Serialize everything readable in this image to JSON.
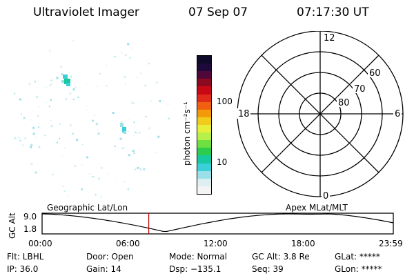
{
  "header": {
    "instrument": "Ultraviolet Imager",
    "date": "07 Sep 07",
    "time": "07:17:30 UT"
  },
  "colorbar": {
    "label": "photon cm⁻²s⁻¹",
    "ticks": [
      "100",
      "10"
    ],
    "colors": [
      "#0d0a2a",
      "#1e0a3a",
      "#50083a",
      "#8c0a20",
      "#c80814",
      "#e02a1a",
      "#f06010",
      "#f39a0a",
      "#f2cc1a",
      "#e6f03a",
      "#b8f04a",
      "#6ee040",
      "#2ccd4c",
      "#18c8a0",
      "#3ad0d8",
      "#9ae0e8",
      "#dfeef0",
      "#f4f4f4"
    ]
  },
  "polar_grid": {
    "mlt_labels": {
      "top": "12",
      "left": "18",
      "right": "6",
      "bottom": "0"
    },
    "mlat_labels": [
      "60",
      "70",
      "80"
    ]
  },
  "timeline": {
    "ylabel": "GC Alt",
    "y_max": "9.0",
    "y_min": "1.8",
    "left_title": "Geographic Lat/Lon",
    "right_title": "Apex MLat/MLT",
    "x_ticks": [
      "00:00",
      "06:00",
      "12:00",
      "18:00",
      "23:59"
    ],
    "current_time_hours": 7.29
  },
  "info": {
    "flt": "Flt: LBHL",
    "door": "Door: Open",
    "mode": "Mode: Normal",
    "gc_alt": "GC Alt: 3.8 Re",
    "glat": "GLat: *****",
    "ip": "IP: 36.0",
    "gain": "Gain: 14",
    "dsp": "Dsp: −135.1",
    "seq": "Seq: 39",
    "glon": "GLon: *****"
  }
}
